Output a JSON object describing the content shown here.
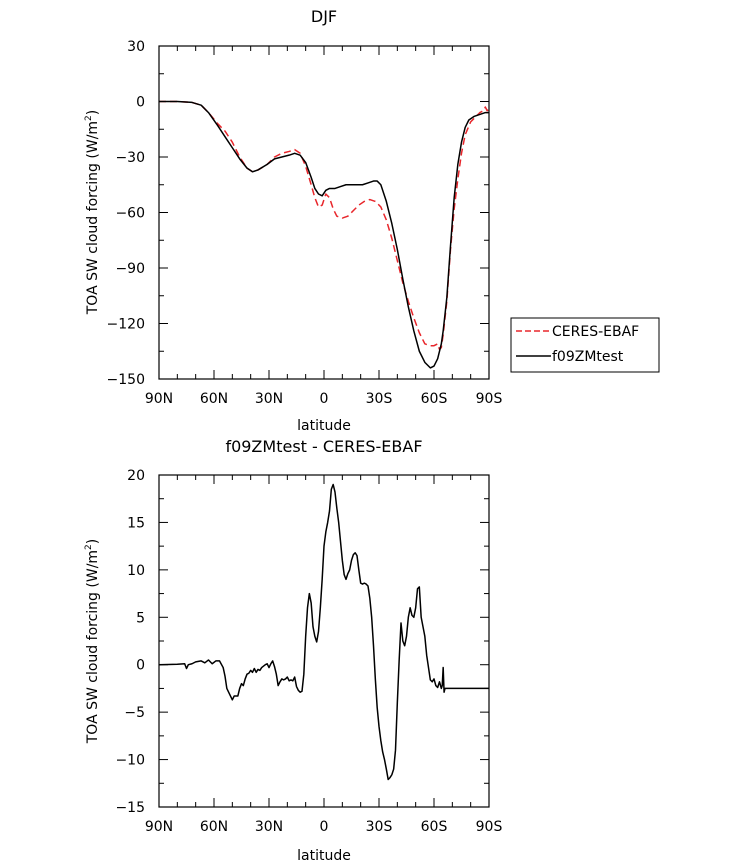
{
  "chart_data": [
    {
      "type": "line",
      "title": "DJF",
      "xlabel": "latitude",
      "ylabel": "TOA SW cloud forcing (W/m²)",
      "ylabel_main": "TOA SW cloud forcing (W/m",
      "ylabel_sup": "2",
      "ylabel_end": ")",
      "xlim": [
        90,
        -90
      ],
      "ylim": [
        -150,
        30
      ],
      "x_ticks": [
        90,
        60,
        30,
        0,
        -30,
        -60,
        -90
      ],
      "x_tick_labels": [
        "90N",
        "60N",
        "30N",
        "0",
        "30S",
        "60S",
        "90S"
      ],
      "y_ticks": [
        30,
        0,
        -30,
        -60,
        -90,
        -120,
        -150
      ],
      "y_tick_labels": [
        "30",
        "0",
        "−30",
        "−60",
        "−90",
        "−120",
        "−150"
      ],
      "legend": {
        "position": "right"
      },
      "series": [
        {
          "name": "CERES-EBAF",
          "color": "#e8262b",
          "dash": "dashed",
          "points": [
            [
              90,
              0
            ],
            [
              80,
              0
            ],
            [
              72,
              -0.5
            ],
            [
              67,
              -2
            ],
            [
              63,
              -6
            ],
            [
              58,
              -12
            ],
            [
              54,
              -16
            ],
            [
              50,
              -22
            ],
            [
              46,
              -30
            ],
            [
              42,
              -36
            ],
            [
              39,
              -38
            ],
            [
              36,
              -37
            ],
            [
              31,
              -34
            ],
            [
              27,
              -30
            ],
            [
              23,
              -28
            ],
            [
              19,
              -27
            ],
            [
              16,
              -26
            ],
            [
              13,
              -28
            ],
            [
              10,
              -35
            ],
            [
              7,
              -45
            ],
            [
              5,
              -52
            ],
            [
              3,
              -57
            ],
            [
              1,
              -56
            ],
            [
              -1,
              -50
            ],
            [
              -3,
              -52
            ],
            [
              -5,
              -58
            ],
            [
              -7,
              -62
            ],
            [
              -10,
              -63
            ],
            [
              -13,
              -62
            ],
            [
              -16,
              -59
            ],
            [
              -19,
              -56
            ],
            [
              -22,
              -54
            ],
            [
              -25,
              -53
            ],
            [
              -28,
              -54
            ],
            [
              -31,
              -57
            ],
            [
              -34,
              -64
            ],
            [
              -37,
              -74
            ],
            [
              -40,
              -86
            ],
            [
              -43,
              -98
            ],
            [
              -46,
              -108
            ],
            [
              -49,
              -117
            ],
            [
              -52,
              -125
            ],
            [
              -55,
              -131
            ],
            [
              -58,
              -132
            ],
            [
              -60,
              -132
            ],
            [
              -62,
              -131
            ],
            [
              -63,
              -134
            ],
            [
              -64,
              -133
            ],
            [
              -65,
              -126
            ],
            [
              -67,
              -108
            ],
            [
              -69,
              -80
            ],
            [
              -71,
              -58
            ],
            [
              -73,
              -42
            ],
            [
              -75,
              -28
            ],
            [
              -77,
              -18
            ],
            [
              -80,
              -11
            ],
            [
              -83,
              -8
            ],
            [
              -85,
              -6
            ],
            [
              -87,
              -5
            ],
            [
              -88,
              -3
            ],
            [
              -89,
              -5
            ],
            [
              -90,
              -4
            ]
          ]
        },
        {
          "name": "f09ZMtest",
          "color": "#000000",
          "dash": "solid",
          "points": [
            [
              90,
              0
            ],
            [
              80,
              0
            ],
            [
              72,
              -0.5
            ],
            [
              67,
              -2
            ],
            [
              63,
              -6
            ],
            [
              58,
              -13
            ],
            [
              54,
              -19
            ],
            [
              50,
              -25
            ],
            [
              46,
              -31
            ],
            [
              42,
              -36
            ],
            [
              39,
              -38
            ],
            [
              36,
              -37
            ],
            [
              31,
              -34
            ],
            [
              27,
              -31
            ],
            [
              23,
              -30
            ],
            [
              19,
              -29
            ],
            [
              16,
              -28
            ],
            [
              13,
              -29
            ],
            [
              10,
              -33
            ],
            [
              7,
              -41
            ],
            [
              5,
              -47
            ],
            [
              3,
              -50
            ],
            [
              1,
              -51
            ],
            [
              -1,
              -48
            ],
            [
              -3,
              -47
            ],
            [
              -6,
              -47
            ],
            [
              -9,
              -46
            ],
            [
              -12,
              -45
            ],
            [
              -15,
              -45
            ],
            [
              -18,
              -45
            ],
            [
              -21,
              -45
            ],
            [
              -24,
              -44
            ],
            [
              -27,
              -43
            ],
            [
              -29,
              -43
            ],
            [
              -31,
              -45
            ],
            [
              -34,
              -54
            ],
            [
              -37,
              -66
            ],
            [
              -40,
              -80
            ],
            [
              -43,
              -96
            ],
            [
              -46,
              -111
            ],
            [
              -49,
              -124
            ],
            [
              -52,
              -135
            ],
            [
              -55,
              -141
            ],
            [
              -58,
              -144
            ],
            [
              -60,
              -143
            ],
            [
              -62,
              -139
            ],
            [
              -64,
              -131
            ],
            [
              -65,
              -124
            ],
            [
              -67,
              -106
            ],
            [
              -69,
              -78
            ],
            [
              -71,
              -52
            ],
            [
              -73,
              -34
            ],
            [
              -75,
              -22
            ],
            [
              -77,
              -14
            ],
            [
              -79,
              -10
            ],
            [
              -82,
              -8
            ],
            [
              -85,
              -7
            ],
            [
              -88,
              -6
            ],
            [
              -90,
              -6
            ]
          ]
        }
      ]
    },
    {
      "type": "line",
      "title": "f09ZMtest - CERES-EBAF",
      "xlabel": "latitude",
      "ylabel": "TOA SW cloud forcing (W/m²)",
      "ylabel_main": "TOA SW cloud forcing (W/m",
      "ylabel_sup": "2",
      "ylabel_end": ")",
      "xlim": [
        90,
        -90
      ],
      "ylim": [
        -15,
        20
      ],
      "x_ticks": [
        90,
        60,
        30,
        0,
        -30,
        -60,
        -90
      ],
      "x_tick_labels": [
        "90N",
        "60N",
        "30N",
        "0",
        "30S",
        "60S",
        "90S"
      ],
      "y_ticks": [
        20,
        15,
        10,
        5,
        0,
        -5,
        -10,
        -15
      ],
      "y_tick_labels": [
        "20",
        "15",
        "10",
        "5",
        "0",
        "−5",
        "−10",
        "−15"
      ],
      "series": [
        {
          "name": "f09ZMtest - CERES-EBAF",
          "color": "#000000",
          "dash": "solid",
          "points": [
            [
              90,
              0
            ],
            [
              80,
              0.05
            ],
            [
              76,
              0.1
            ],
            [
              75,
              -0.4
            ],
            [
              74,
              0
            ],
            [
              72,
              0.1
            ],
            [
              70,
              0.3
            ],
            [
              67,
              0.4
            ],
            [
              65,
              0.2
            ],
            [
              63,
              0.5
            ],
            [
              61,
              0.1
            ],
            [
              59,
              0.4
            ],
            [
              57,
              0.4
            ],
            [
              55,
              -0.3
            ],
            [
              54,
              -1.2
            ],
            [
              53,
              -2.5
            ],
            [
              51,
              -3.3
            ],
            [
              50,
              -3.7
            ],
            [
              49,
              -3.3
            ],
            [
              48,
              -3.3
            ],
            [
              47,
              -3.3
            ],
            [
              46,
              -2.5
            ],
            [
              45,
              -2
            ],
            [
              44,
              -2.2
            ],
            [
              43,
              -1.5
            ],
            [
              42,
              -1
            ],
            [
              41,
              -0.9
            ],
            [
              40,
              -0.6
            ],
            [
              39,
              -0.8
            ],
            [
              38,
              -0.4
            ],
            [
              37,
              -0.8
            ],
            [
              36,
              -0.5
            ],
            [
              35,
              -0.6
            ],
            [
              34,
              -0.3
            ],
            [
              32,
              0
            ],
            [
              31,
              0.1
            ],
            [
              30,
              -0.3
            ],
            [
              29,
              0.1
            ],
            [
              28,
              0.4
            ],
            [
              27,
              -0.2
            ],
            [
              26,
              -1
            ],
            [
              25,
              -2.2
            ],
            [
              24,
              -1.8
            ],
            [
              23,
              -1.5
            ],
            [
              22,
              -1.6
            ],
            [
              21,
              -1.5
            ],
            [
              20,
              -1.3
            ],
            [
              19,
              -1.7
            ],
            [
              18,
              -1.6
            ],
            [
              17,
              -1.7
            ],
            [
              16,
              -1.3
            ],
            [
              15,
              -2.3
            ],
            [
              14,
              -2.7
            ],
            [
              13,
              -2.9
            ],
            [
              12,
              -2.8
            ],
            [
              11,
              -1
            ],
            [
              10,
              3
            ],
            [
              9,
              6
            ],
            [
              8,
              7.5
            ],
            [
              7,
              6.5
            ],
            [
              6,
              4
            ],
            [
              5,
              3
            ],
            [
              4,
              2.4
            ],
            [
              3,
              3.5
            ],
            [
              2,
              6
            ],
            [
              1,
              9
            ],
            [
              0,
              12.5
            ],
            [
              -1,
              14
            ],
            [
              -2,
              15
            ],
            [
              -3,
              16.2
            ],
            [
              -4,
              18.5
            ],
            [
              -5,
              19
            ],
            [
              -6,
              18.2
            ],
            [
              -7,
              16.5
            ],
            [
              -8,
              15
            ],
            [
              -9,
              13
            ],
            [
              -10,
              11
            ],
            [
              -11,
              9.5
            ],
            [
              -12,
              9
            ],
            [
              -13,
              9.6
            ],
            [
              -14,
              10
            ],
            [
              -15,
              11
            ],
            [
              -16,
              11.6
            ],
            [
              -17,
              11.8
            ],
            [
              -18,
              11.5
            ],
            [
              -19,
              10
            ],
            [
              -20,
              8.6
            ],
            [
              -21,
              8.5
            ],
            [
              -22,
              8.6
            ],
            [
              -23,
              8.5
            ],
            [
              -24,
              8.3
            ],
            [
              -25,
              7
            ],
            [
              -26,
              5
            ],
            [
              -27,
              2
            ],
            [
              -28,
              -1.5
            ],
            [
              -29,
              -4.5
            ],
            [
              -30,
              -6.5
            ],
            [
              -31,
              -8
            ],
            [
              -32,
              -9.2
            ],
            [
              -33,
              -10
            ],
            [
              -34,
              -11
            ],
            [
              -35,
              -12.1
            ],
            [
              -36,
              -11.9
            ],
            [
              -37,
              -11.6
            ],
            [
              -38,
              -11
            ],
            [
              -39,
              -9
            ],
            [
              -40,
              -4
            ],
            [
              -41,
              0.5
            ],
            [
              -42,
              4.4
            ],
            [
              -43,
              2.5
            ],
            [
              -44,
              2
            ],
            [
              -45,
              3
            ],
            [
              -46,
              5
            ],
            [
              -47,
              6
            ],
            [
              -48,
              5.2
            ],
            [
              -49,
              5
            ],
            [
              -50,
              6
            ],
            [
              -51,
              8
            ],
            [
              -52,
              8.2
            ],
            [
              -53,
              5
            ],
            [
              -54,
              4
            ],
            [
              -55,
              3
            ],
            [
              -56,
              1
            ],
            [
              -57,
              -0.3
            ],
            [
              -58,
              -1.6
            ],
            [
              -59,
              -1.8
            ],
            [
              -60,
              -1.5
            ],
            [
              -61,
              -2.2
            ],
            [
              -62,
              -2.4
            ],
            [
              -63,
              -1.8
            ],
            [
              -64,
              -2.5
            ],
            [
              -64.5,
              -2.2
            ],
            [
              -65,
              -0.3
            ],
            [
              -65.5,
              -2.9
            ],
            [
              -66,
              -2.5
            ],
            [
              -90,
              -2.5
            ]
          ]
        }
      ]
    }
  ]
}
